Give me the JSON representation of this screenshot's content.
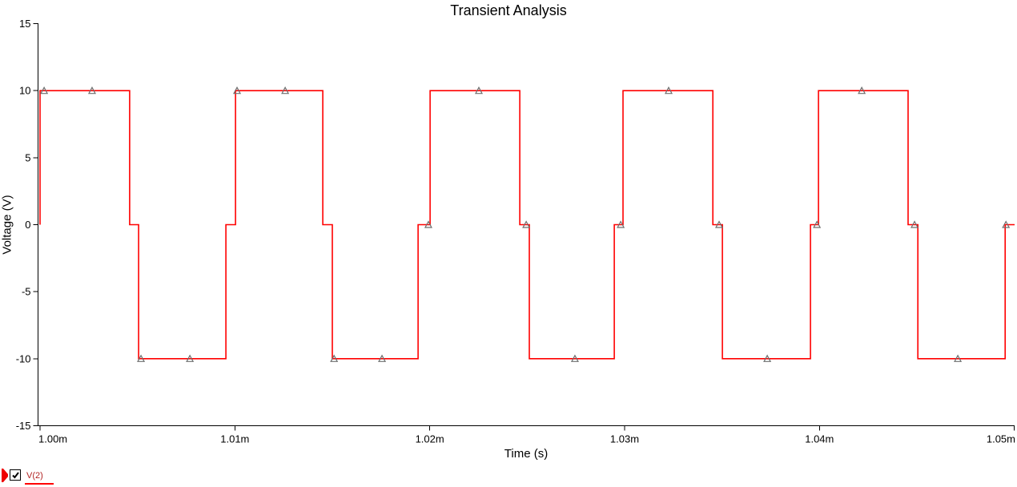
{
  "title": "Transient Analysis",
  "colors": {
    "trace": "#ff0000",
    "axis": "#000000",
    "marker_outline": "#6e6e6e",
    "legend_text": "#b22222",
    "background": "#ffffff"
  },
  "y_axis": {
    "label": "Voltage (V)",
    "labels": [
      "15",
      "10",
      "5",
      "0",
      "-5",
      "-10",
      "-15"
    ],
    "values": [
      15,
      10,
      5,
      0,
      -5,
      -10,
      -15
    ],
    "min": -15,
    "max": 15
  },
  "x_axis": {
    "label": "Time (s)",
    "labels": [
      "1.00m",
      "1.01m",
      "1.02m",
      "1.03m",
      "1.04m",
      "1.05m"
    ],
    "values": [
      1.0,
      1.01,
      1.02,
      1.03,
      1.04,
      1.05
    ],
    "unit": "ms"
  },
  "legend": {
    "name": "V(2)",
    "checked": true
  },
  "chart_data": {
    "type": "line",
    "title": "Transient Analysis",
    "xlabel": "Time (s)",
    "ylabel": "Voltage (V)",
    "xlim": [
      1.0,
      1.0505
    ],
    "ylim": [
      -15,
      15
    ],
    "x_unit": "ms",
    "grid": false,
    "legend_position": "bottom-left",
    "description": "Square wave toggling between +10 V and -10 V with brief 0 V steps at each transition, period ~0.01 ms",
    "series": [
      {
        "name": "V(2)",
        "color": "#ff0000",
        "marker": "triangle-up-hollow",
        "points": [
          [
            1.0,
            0
          ],
          [
            1.0,
            10
          ],
          [
            1.0046,
            10
          ],
          [
            1.0046,
            0
          ],
          [
            1.00506,
            0
          ],
          [
            1.00506,
            -10
          ],
          [
            1.00954,
            -10
          ],
          [
            1.00954,
            0
          ],
          [
            1.01003,
            0
          ],
          [
            1.01003,
            10
          ],
          [
            1.01451,
            10
          ],
          [
            1.01451,
            0
          ],
          [
            1.015,
            0
          ],
          [
            1.015,
            -10
          ],
          [
            1.0194,
            -10
          ],
          [
            1.0194,
            0
          ],
          [
            1.02002,
            0
          ],
          [
            1.02002,
            10
          ],
          [
            1.02462,
            10
          ],
          [
            1.02462,
            0
          ],
          [
            1.02511,
            0
          ],
          [
            1.02511,
            -10
          ],
          [
            1.02947,
            -10
          ],
          [
            1.02947,
            0
          ],
          [
            1.02992,
            0
          ],
          [
            1.02992,
            10
          ],
          [
            1.03453,
            10
          ],
          [
            1.03453,
            0
          ],
          [
            1.03502,
            0
          ],
          [
            1.03502,
            -10
          ],
          [
            1.03954,
            -10
          ],
          [
            1.03954,
            0
          ],
          [
            1.03995,
            0
          ],
          [
            1.03995,
            10
          ],
          [
            1.04455,
            10
          ],
          [
            1.04455,
            0
          ],
          [
            1.04505,
            0
          ],
          [
            1.04505,
            -10
          ],
          [
            1.04953,
            -10
          ],
          [
            1.04953,
            0
          ],
          [
            1.05002,
            0
          ]
        ],
        "markers": [
          [
            1.00021,
            10
          ],
          [
            1.00267,
            10
          ],
          [
            1.00518,
            -10
          ],
          [
            1.00769,
            -10
          ],
          [
            1.01011,
            10
          ],
          [
            1.01258,
            10
          ],
          [
            1.01509,
            -10
          ],
          [
            1.01755,
            -10
          ],
          [
            1.01993,
            0
          ],
          [
            1.02252,
            10
          ],
          [
            1.02495,
            0
          ],
          [
            1.02745,
            -10
          ],
          [
            1.0298,
            0
          ],
          [
            1.03226,
            10
          ],
          [
            1.03485,
            0
          ],
          [
            1.03732,
            -10
          ],
          [
            1.03987,
            0
          ],
          [
            1.04217,
            10
          ],
          [
            1.04488,
            0
          ],
          [
            1.0471,
            -10
          ],
          [
            1.04957,
            0
          ]
        ]
      }
    ]
  }
}
